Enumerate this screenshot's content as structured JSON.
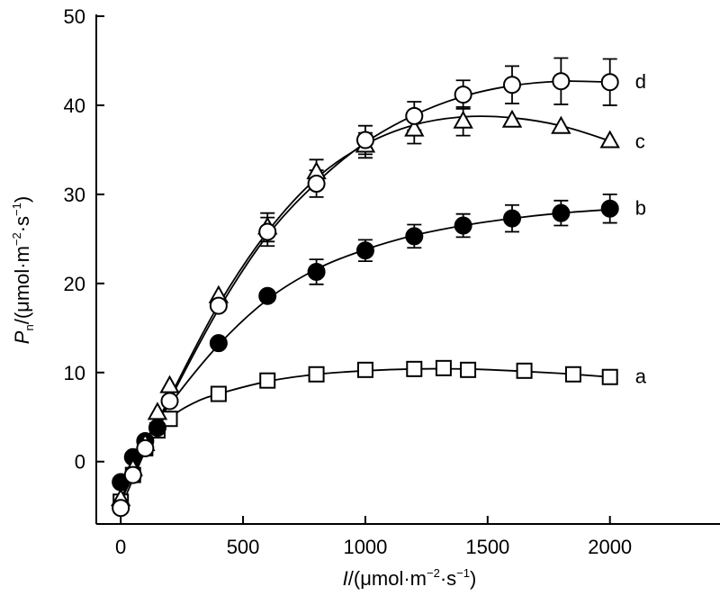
{
  "chart_data": {
    "type": "scatter",
    "title": "",
    "xlim": [
      -100,
      2450
    ],
    "ylim": [
      -7,
      50
    ],
    "xticks": [
      0,
      500,
      1000,
      1500,
      2000
    ],
    "yticks": [
      0,
      10,
      20,
      30,
      40,
      50
    ],
    "xlabel": {
      "italic": "I",
      "rest": "/(μmol·m",
      "sup1": "−2",
      "mid": "·s",
      "sup2": "−1",
      "end": ")"
    },
    "ylabel": {
      "italic": "P",
      "sub": "n",
      "rest": "/(μmol·m",
      "sup1": "−2",
      "mid": "·s",
      "sup2": "−1",
      "end": ")"
    },
    "grid": false,
    "series": [
      {
        "label": "a",
        "marker": "square-open",
        "x": [
          0,
          50,
          100,
          150,
          200,
          400,
          600,
          800,
          1000,
          1200,
          1320,
          1420,
          1650,
          1850,
          2000
        ],
        "y": [
          -4.5,
          -1.5,
          1.5,
          3.5,
          4.8,
          7.6,
          9.1,
          9.8,
          10.3,
          10.4,
          10.5,
          10.3,
          10.2,
          9.8,
          9.5
        ],
        "err": [
          0,
          0,
          0,
          0,
          0,
          0,
          0,
          0,
          0,
          0,
          0,
          0,
          0,
          0,
          0
        ],
        "fit": [
          [
            0,
            -4.5
          ],
          [
            100,
            1.2
          ],
          [
            200,
            4.8
          ],
          [
            300,
            6.6
          ],
          [
            400,
            7.6
          ],
          [
            600,
            9.0
          ],
          [
            800,
            9.8
          ],
          [
            1000,
            10.2
          ],
          [
            1200,
            10.4
          ],
          [
            1400,
            10.4
          ],
          [
            1600,
            10.2
          ],
          [
            1800,
            9.9
          ],
          [
            2000,
            9.5
          ]
        ]
      },
      {
        "label": "b",
        "marker": "circle-filled",
        "x": [
          0,
          50,
          100,
          150,
          400,
          600,
          800,
          1000,
          1200,
          1400,
          1600,
          1800,
          2000
        ],
        "y": [
          -2.3,
          0.5,
          2.3,
          3.8,
          13.3,
          18.6,
          21.3,
          23.7,
          25.3,
          26.5,
          27.3,
          27.9,
          28.4
        ],
        "err": [
          0,
          0,
          0,
          0,
          0,
          0,
          1.4,
          1.2,
          1.3,
          1.3,
          1.5,
          1.4,
          1.6
        ],
        "fit": [
          [
            0,
            -2.3
          ],
          [
            100,
            2.2
          ],
          [
            200,
            6.4
          ],
          [
            400,
            13.1
          ],
          [
            600,
            18.2
          ],
          [
            800,
            21.6
          ],
          [
            1000,
            23.8
          ],
          [
            1200,
            25.4
          ],
          [
            1400,
            26.5
          ],
          [
            1600,
            27.3
          ],
          [
            1800,
            27.9
          ],
          [
            2000,
            28.3
          ]
        ]
      },
      {
        "label": "c",
        "marker": "triangle-open",
        "x": [
          0,
          50,
          100,
          150,
          200,
          400,
          600,
          800,
          1000,
          1200,
          1400,
          1600,
          1800,
          2000
        ],
        "y": [
          -4.2,
          -0.8,
          2.0,
          5.5,
          8.5,
          18.6,
          26.3,
          32.5,
          35.5,
          37.3,
          38.2,
          38.3,
          37.6,
          36.0
        ],
        "err": [
          0,
          0,
          0,
          0,
          0,
          0,
          1.6,
          1.4,
          1.4,
          1.6,
          1.6,
          0,
          0,
          0
        ],
        "fit": [
          [
            0,
            -4.2
          ],
          [
            100,
            1.6
          ],
          [
            200,
            7.2
          ],
          [
            400,
            17.6
          ],
          [
            600,
            25.8
          ],
          [
            800,
            31.8
          ],
          [
            1000,
            35.6
          ],
          [
            1200,
            37.8
          ],
          [
            1400,
            38.7
          ],
          [
            1600,
            38.6
          ],
          [
            1800,
            37.7
          ],
          [
            2000,
            36.0
          ]
        ]
      },
      {
        "label": "d",
        "marker": "circle-open",
        "x": [
          0,
          50,
          100,
          200,
          400,
          600,
          800,
          1000,
          1200,
          1400,
          1600,
          1800,
          2000
        ],
        "y": [
          -5.2,
          -1.5,
          1.5,
          6.8,
          17.5,
          25.8,
          31.2,
          36.1,
          38.8,
          41.2,
          42.3,
          42.7,
          42.6
        ],
        "err": [
          0,
          0,
          0,
          0,
          0,
          1.6,
          1.5,
          1.6,
          1.6,
          1.6,
          2.1,
          2.6,
          2.6
        ],
        "fit": [
          [
            0,
            -5.2
          ],
          [
            100,
            1.2
          ],
          [
            200,
            6.9
          ],
          [
            400,
            17.1
          ],
          [
            600,
            25.4
          ],
          [
            800,
            31.3
          ],
          [
            1000,
            35.8
          ],
          [
            1200,
            38.9
          ],
          [
            1400,
            41.0
          ],
          [
            1600,
            42.2
          ],
          [
            1800,
            42.7
          ],
          [
            2000,
            42.6
          ]
        ]
      }
    ]
  }
}
